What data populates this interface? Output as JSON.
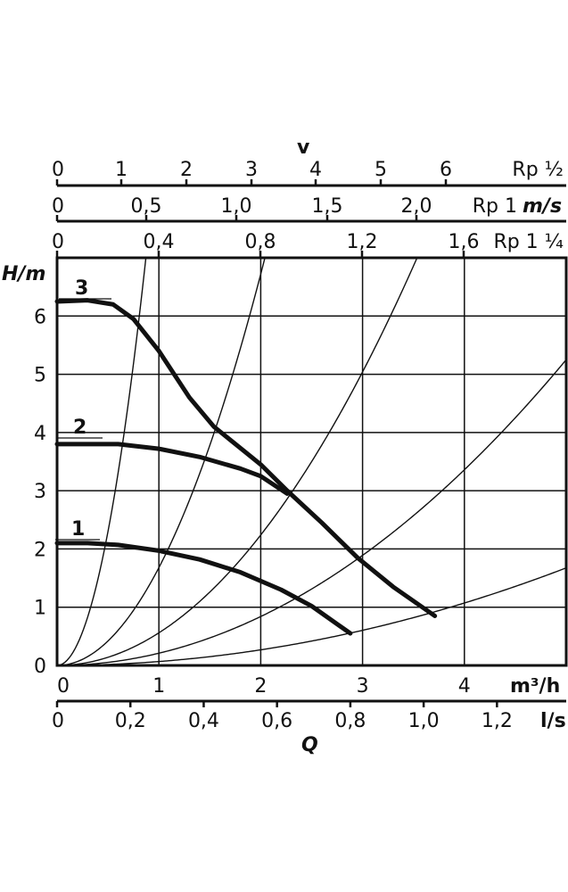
{
  "chart_data": {
    "type": "line",
    "xlabel": "Q",
    "ylabel": "H/m",
    "x_unit": "m³/h",
    "x2_unit": "l/s",
    "xlim": [
      0,
      5
    ],
    "ylim": [
      0,
      7
    ],
    "grid": true,
    "x_ticks": [
      "0",
      "1",
      "2",
      "3",
      "4"
    ],
    "x_tick_values": [
      0,
      1,
      2,
      3,
      4
    ],
    "x2_ticks": [
      "0",
      "0,2",
      "0,4",
      "0,6",
      "0,8",
      "1,0",
      "1,2"
    ],
    "x2_tick_values": [
      0,
      0.2,
      0.4,
      0.6,
      0.8,
      1.0,
      1.2
    ],
    "y_ticks": [
      "0",
      "1",
      "2",
      "3",
      "4",
      "5",
      "6"
    ],
    "velocity_label": "v",
    "velocity_unit": "m/s",
    "velocity_axes": [
      {
        "name": "Rp ½",
        "ticks": [
          "0",
          "1",
          "2",
          "3",
          "4",
          "5",
          "6"
        ],
        "values": [
          0,
          1,
          2,
          3,
          4,
          5,
          6
        ],
        "per_m3h": 0.632
      },
      {
        "name": "Rp 1",
        "ticks": [
          "0",
          "0,5",
          "1,0",
          "1,5",
          "2,0"
        ],
        "values": [
          0,
          0.5,
          1.0,
          1.5,
          2.0
        ],
        "per_m3h": 0.229
      },
      {
        "name": "Rp 1 ¼",
        "ticks": [
          "0",
          "0,4",
          "0,8",
          "1,2",
          "1,6"
        ],
        "values": [
          0,
          0.4,
          0.8,
          1.2,
          1.6
        ],
        "per_m3h": 0.4
      }
    ],
    "series": [
      {
        "name": "3",
        "x": [
          0,
          0.3,
          0.55,
          0.75,
          1.0,
          1.3,
          1.54,
          2.0,
          2.26,
          2.6,
          2.95,
          3.3,
          3.71
        ],
        "y": [
          6.25,
          6.27,
          6.2,
          5.95,
          5.4,
          4.6,
          4.1,
          3.45,
          3.0,
          2.45,
          1.85,
          1.35,
          0.85
        ]
      },
      {
        "name": "2",
        "x": [
          0,
          0.3,
          0.6,
          1.0,
          1.4,
          1.8,
          2.0,
          2.26
        ],
        "y": [
          3.8,
          3.8,
          3.8,
          3.72,
          3.58,
          3.38,
          3.25,
          2.95
        ]
      },
      {
        "name": "1",
        "x": [
          0,
          0.3,
          0.6,
          1.0,
          1.4,
          1.8,
          2.2,
          2.5,
          2.88
        ],
        "y": [
          2.1,
          2.1,
          2.07,
          1.97,
          1.82,
          1.6,
          1.3,
          1.02,
          0.55
        ]
      }
    ],
    "system_curves_k": [
      9.2,
      1.68,
      0.56,
      0.21,
      0.067
    ]
  }
}
